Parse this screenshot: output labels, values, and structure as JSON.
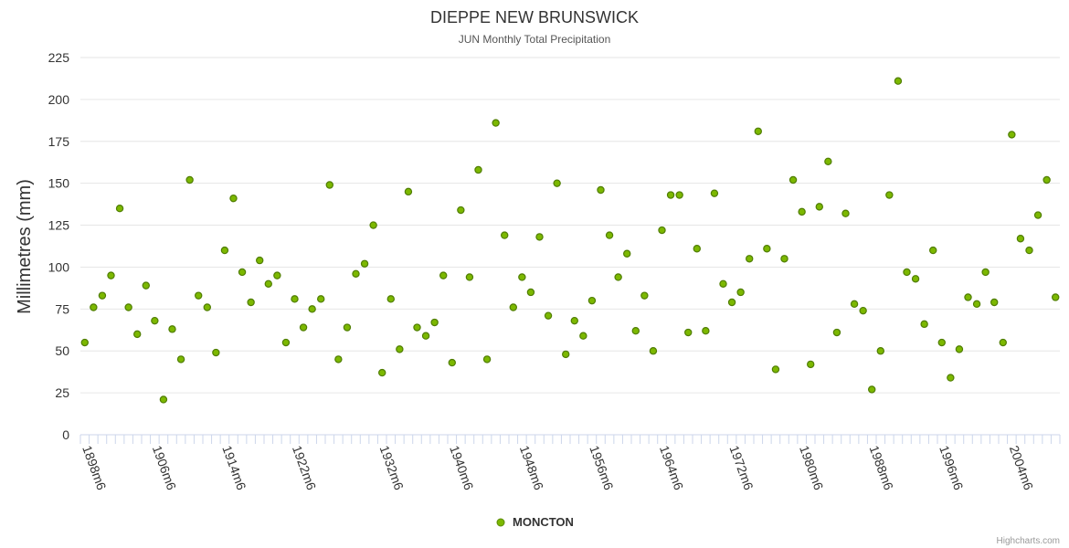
{
  "chart_data": {
    "type": "scatter",
    "title": "DIEPPE NEW BRUNSWICK",
    "subtitle": "JUN Monthly Total Precipitation",
    "ylabel": "Millimetres (mm)",
    "xlabel": "",
    "ylim": [
      0,
      225
    ],
    "yticks": [
      0,
      25,
      50,
      75,
      100,
      125,
      150,
      175,
      200,
      225
    ],
    "xticklabels": [
      "1898m6",
      "1906m6",
      "1914m6",
      "1922m6",
      "1932m6",
      "1940m6",
      "1948m6",
      "1956m6",
      "1964m6",
      "1972m6",
      "1980m6",
      "1988m6",
      "1996m6",
      "2004m6"
    ],
    "grid": true,
    "legend_position": "bottom-center",
    "series": [
      {
        "name": "MONCTON",
        "color": "#7cb800",
        "values": [
          55,
          76,
          83,
          95,
          135,
          76,
          60,
          89,
          68,
          21,
          63,
          45,
          152,
          83,
          76,
          49,
          110,
          141,
          97,
          79,
          104,
          90,
          95,
          55,
          81,
          64,
          75,
          81,
          149,
          45,
          64,
          96,
          102,
          125,
          37,
          81,
          51,
          145,
          64,
          59,
          67,
          95,
          43,
          134,
          94,
          158,
          45,
          186,
          119,
          76,
          94,
          85,
          118,
          71,
          150,
          48,
          68,
          59,
          80,
          146,
          119,
          94,
          108,
          62,
          83,
          50,
          122,
          143,
          143,
          61,
          111,
          62,
          144,
          90,
          79,
          85,
          105,
          181,
          111,
          39,
          105,
          152,
          133,
          42,
          136,
          163,
          61,
          132,
          78,
          74,
          27,
          50,
          143,
          211,
          97,
          93,
          66,
          110,
          55,
          34,
          51,
          82,
          78,
          97,
          79,
          55,
          179,
          117,
          110,
          131,
          152,
          82
        ]
      }
    ]
  },
  "credits": "Highcharts.com"
}
